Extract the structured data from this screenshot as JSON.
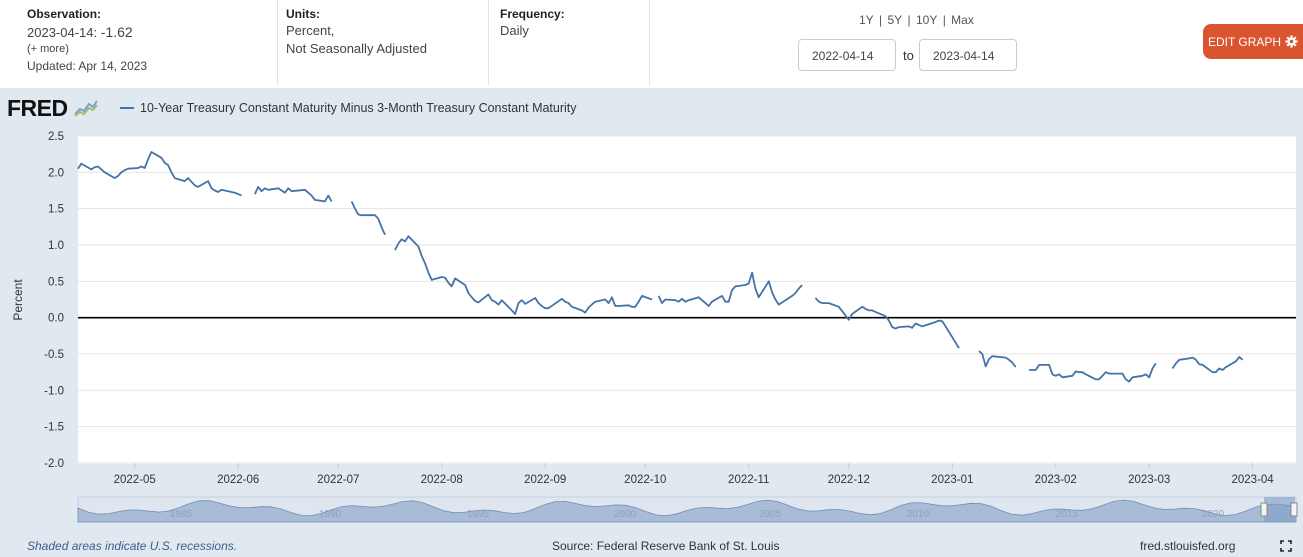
{
  "header": {
    "observation_label": "Observation:",
    "observation_date": "2023-04-14:",
    "observation_value": "-1.62",
    "more": "(+ more)",
    "updated": "Updated: Apr 14, 2023",
    "units_label": "Units:",
    "units_line1": "Percent,",
    "units_line2": "Not Seasonally Adjusted",
    "frequency_label": "Frequency:",
    "frequency_value": "Daily",
    "ranges": [
      "1Y",
      "5Y",
      "10Y",
      "Max"
    ],
    "range_sep": "|",
    "start_date": "2022-04-14",
    "to_label": "to",
    "end_date": "2023-04-14",
    "edit_label": "EDIT GRAPH"
  },
  "logo": "FRED",
  "icons": {
    "logo_chart": "line-chart-icon",
    "edit": "gear-icon",
    "fullscreen": "fullscreen-icon"
  },
  "footer": {
    "recession_note": "Shaded areas indicate U.S. recessions.",
    "source": "Source: Federal Reserve Bank of St. Louis",
    "site": "fred.stlouisfed.org"
  },
  "colors": {
    "series": "#4572a7",
    "panel": "#e1e9f0",
    "edit": "#d9542f",
    "zero_line": "#000000"
  },
  "navigator_labels": [
    "1985",
    "1990",
    "1995",
    "2000",
    "2005",
    "2010",
    "2015",
    "2020"
  ],
  "chart_data": {
    "type": "line",
    "series": [
      {
        "name": "10-Year Treasury Constant Maturity Minus 3-Month Treasury Constant Maturity",
        "points": [
          [
            "2022-04-14",
            2.05
          ],
          [
            "2022-04-15",
            2.12
          ],
          [
            "2022-04-18",
            2.04
          ],
          [
            "2022-04-19",
            2.07
          ],
          [
            "2022-04-20",
            2.08
          ],
          [
            "2022-04-21",
            2.04
          ],
          [
            "2022-04-22",
            2.0
          ],
          [
            "2022-04-25",
            1.92
          ],
          [
            "2022-04-26",
            1.95
          ],
          [
            "2022-04-27",
            2.0
          ],
          [
            "2022-04-28",
            2.03
          ],
          [
            "2022-04-29",
            2.05
          ],
          [
            "2022-05-02",
            2.06
          ],
          [
            "2022-05-03",
            2.08
          ],
          [
            "2022-05-04",
            2.06
          ],
          [
            "2022-05-05",
            2.18
          ],
          [
            "2022-05-06",
            2.28
          ],
          [
            "2022-05-09",
            2.2
          ],
          [
            "2022-05-10",
            2.13
          ],
          [
            "2022-05-11",
            2.1
          ],
          [
            "2022-05-12",
            2.0
          ],
          [
            "2022-05-13",
            1.92
          ],
          [
            "2022-05-16",
            1.88
          ],
          [
            "2022-05-17",
            1.92
          ],
          [
            "2022-05-18",
            1.87
          ],
          [
            "2022-05-19",
            1.82
          ],
          [
            "2022-05-20",
            1.8
          ],
          [
            "2022-05-23",
            1.88
          ],
          [
            "2022-05-24",
            1.78
          ],
          [
            "2022-05-25",
            1.75
          ],
          [
            "2022-05-26",
            1.73
          ],
          [
            "2022-05-27",
            1.76
          ],
          [
            "2022-05-31",
            1.72
          ],
          [
            "2022-06-01",
            1.7
          ],
          [
            "2022-06-02",
            1.68
          ],
          null,
          [
            "2022-06-06",
            1.7
          ],
          [
            "2022-06-07",
            1.8
          ],
          [
            "2022-06-08",
            1.74
          ],
          [
            "2022-06-09",
            1.78
          ],
          [
            "2022-06-10",
            1.76
          ],
          [
            "2022-06-13",
            1.78
          ],
          [
            "2022-06-14",
            1.75
          ],
          [
            "2022-06-15",
            1.72
          ],
          [
            "2022-06-16",
            1.78
          ],
          [
            "2022-06-17",
            1.74
          ],
          [
            "2022-06-21",
            1.76
          ],
          [
            "2022-06-22",
            1.72
          ],
          [
            "2022-06-23",
            1.68
          ],
          [
            "2022-06-24",
            1.62
          ],
          [
            "2022-06-27",
            1.6
          ],
          [
            "2022-06-28",
            1.68
          ],
          [
            "2022-06-29",
            1.6
          ],
          null,
          [
            "2022-07-05",
            1.6
          ],
          [
            "2022-07-06",
            1.5
          ],
          [
            "2022-07-07",
            1.42
          ],
          [
            "2022-07-08",
            1.41
          ],
          [
            "2022-07-11",
            1.41
          ],
          [
            "2022-07-12",
            1.41
          ],
          [
            "2022-07-13",
            1.36
          ],
          [
            "2022-07-14",
            1.24
          ],
          [
            "2022-07-15",
            1.14
          ],
          null,
          [
            "2022-07-18",
            0.93
          ],
          [
            "2022-07-19",
            1.02
          ],
          [
            "2022-07-20",
            1.08
          ],
          [
            "2022-07-21",
            1.05
          ],
          [
            "2022-07-22",
            1.12
          ],
          [
            "2022-07-25",
            0.98
          ],
          [
            "2022-07-26",
            0.85
          ],
          [
            "2022-07-27",
            0.75
          ],
          [
            "2022-07-28",
            0.62
          ],
          [
            "2022-07-29",
            0.52
          ],
          [
            "2022-08-01",
            0.56
          ],
          [
            "2022-08-02",
            0.55
          ],
          [
            "2022-08-03",
            0.48
          ],
          [
            "2022-08-04",
            0.43
          ],
          [
            "2022-08-05",
            0.54
          ],
          [
            "2022-08-08",
            0.45
          ],
          [
            "2022-08-09",
            0.34
          ],
          [
            "2022-08-10",
            0.28
          ],
          [
            "2022-08-11",
            0.23
          ],
          [
            "2022-08-12",
            0.21
          ],
          [
            "2022-08-15",
            0.32
          ],
          [
            "2022-08-16",
            0.24
          ],
          [
            "2022-08-17",
            0.22
          ],
          [
            "2022-08-18",
            0.18
          ],
          [
            "2022-08-19",
            0.24
          ],
          [
            "2022-08-22",
            0.1
          ],
          [
            "2022-08-23",
            0.05
          ],
          [
            "2022-08-24",
            0.2
          ],
          [
            "2022-08-25",
            0.24
          ],
          [
            "2022-08-26",
            0.19
          ],
          [
            "2022-08-29",
            0.27
          ],
          [
            "2022-08-30",
            0.2
          ],
          [
            "2022-08-31",
            0.16
          ],
          [
            "2022-09-01",
            0.13
          ],
          [
            "2022-09-02",
            0.13
          ],
          [
            "2022-09-06",
            0.26
          ],
          [
            "2022-09-07",
            0.22
          ],
          [
            "2022-09-08",
            0.2
          ],
          [
            "2022-09-09",
            0.15
          ],
          [
            "2022-09-12",
            0.1
          ],
          [
            "2022-09-13",
            0.07
          ],
          [
            "2022-09-14",
            0.14
          ],
          [
            "2022-09-15",
            0.18
          ],
          [
            "2022-09-16",
            0.22
          ],
          [
            "2022-09-19",
            0.25
          ],
          [
            "2022-09-20",
            0.2
          ],
          [
            "2022-09-21",
            0.28
          ],
          [
            "2022-09-22",
            0.16
          ],
          [
            "2022-09-23",
            0.16
          ],
          [
            "2022-09-26",
            0.17
          ],
          [
            "2022-09-27",
            0.15
          ],
          [
            "2022-09-28",
            0.15
          ],
          [
            "2022-09-29",
            0.22
          ],
          [
            "2022-09-30",
            0.3
          ],
          [
            "2022-10-03",
            0.25
          ],
          null,
          [
            "2022-10-05",
            0.3
          ],
          [
            "2022-10-06",
            0.2
          ],
          [
            "2022-10-07",
            0.25
          ],
          [
            "2022-10-10",
            0.24
          ],
          [
            "2022-10-11",
            0.22
          ],
          [
            "2022-10-12",
            0.26
          ],
          [
            "2022-10-13",
            0.22
          ],
          [
            "2022-10-14",
            0.24
          ],
          [
            "2022-10-17",
            0.28
          ],
          [
            "2022-10-18",
            0.24
          ],
          [
            "2022-10-19",
            0.2
          ],
          [
            "2022-10-20",
            0.16
          ],
          [
            "2022-10-21",
            0.22
          ],
          [
            "2022-10-24",
            0.3
          ],
          [
            "2022-10-25",
            0.22
          ],
          [
            "2022-10-26",
            0.22
          ],
          [
            "2022-10-27",
            0.38
          ],
          [
            "2022-10-28",
            0.43
          ],
          [
            "2022-10-31",
            0.45
          ],
          [
            "2022-11-01",
            0.47
          ],
          [
            "2022-11-02",
            0.62
          ],
          [
            "2022-11-03",
            0.4
          ],
          [
            "2022-11-04",
            0.28
          ],
          [
            "2022-11-07",
            0.5
          ],
          [
            "2022-11-08",
            0.35
          ],
          [
            "2022-11-09",
            0.25
          ],
          [
            "2022-11-10",
            0.18
          ],
          [
            "2022-11-14",
            0.3
          ],
          [
            "2022-11-15",
            0.34
          ],
          [
            "2022-11-16",
            0.4
          ],
          [
            "2022-11-17",
            0.45
          ],
          null,
          [
            "2022-11-21",
            0.27
          ],
          [
            "2022-11-22",
            0.22
          ],
          [
            "2022-11-23",
            0.2
          ],
          [
            "2022-11-25",
            0.2
          ],
          [
            "2022-11-28",
            0.15
          ],
          [
            "2022-11-29",
            0.09
          ],
          [
            "2022-11-30",
            0.03
          ],
          [
            "2022-12-01",
            -0.03
          ],
          [
            "2022-12-02",
            0.05
          ],
          [
            "2022-12-05",
            0.15
          ],
          [
            "2022-12-06",
            0.12
          ],
          [
            "2022-12-07",
            0.1
          ],
          [
            "2022-12-08",
            0.1
          ],
          [
            "2022-12-09",
            0.08
          ],
          [
            "2022-12-12",
            0.02
          ],
          [
            "2022-12-13",
            -0.04
          ],
          [
            "2022-12-14",
            -0.13
          ],
          [
            "2022-12-15",
            -0.15
          ],
          [
            "2022-12-16",
            -0.13
          ],
          [
            "2022-12-19",
            -0.12
          ],
          [
            "2022-12-20",
            -0.14
          ],
          [
            "2022-12-21",
            -0.08
          ],
          [
            "2022-12-22",
            -0.1
          ],
          [
            "2022-12-23",
            -0.12
          ],
          [
            "2022-12-27",
            -0.06
          ],
          [
            "2022-12-28",
            -0.04
          ],
          [
            "2022-12-29",
            -0.05
          ],
          [
            "2022-12-30",
            -0.12
          ],
          [
            "2023-01-03",
            -0.42
          ],
          null,
          [
            "2023-01-09",
            -0.46
          ],
          [
            "2023-01-10",
            -0.5
          ],
          [
            "2023-01-11",
            -0.67
          ],
          [
            "2023-01-12",
            -0.57
          ],
          [
            "2023-01-13",
            -0.53
          ],
          [
            "2023-01-17",
            -0.55
          ],
          [
            "2023-01-18",
            -0.58
          ],
          [
            "2023-01-19",
            -0.62
          ],
          [
            "2023-01-20",
            -0.68
          ],
          null,
          [
            "2023-01-24",
            -0.72
          ],
          [
            "2023-01-25",
            -0.72
          ],
          [
            "2023-01-26",
            -0.72
          ],
          [
            "2023-01-27",
            -0.65
          ],
          [
            "2023-01-30",
            -0.65
          ],
          [
            "2023-01-31",
            -0.78
          ],
          [
            "2023-02-01",
            -0.8
          ],
          [
            "2023-02-02",
            -0.78
          ],
          [
            "2023-02-03",
            -0.82
          ],
          [
            "2023-02-06",
            -0.8
          ],
          [
            "2023-02-07",
            -0.74
          ],
          [
            "2023-02-08",
            -0.75
          ],
          [
            "2023-02-09",
            -0.75
          ],
          [
            "2023-02-10",
            -0.78
          ],
          [
            "2023-02-13",
            -0.85
          ],
          [
            "2023-02-14",
            -0.85
          ],
          [
            "2023-02-15",
            -0.8
          ],
          [
            "2023-02-16",
            -0.75
          ],
          [
            "2023-02-17",
            -0.77
          ],
          [
            "2023-02-21",
            -0.77
          ],
          [
            "2023-02-22",
            -0.85
          ],
          [
            "2023-02-23",
            -0.88
          ],
          [
            "2023-02-24",
            -0.82
          ],
          [
            "2023-02-27",
            -0.8
          ],
          [
            "2023-02-28",
            -0.78
          ],
          [
            "2023-03-01",
            -0.82
          ],
          [
            "2023-03-02",
            -0.7
          ],
          [
            "2023-03-03",
            -0.63
          ],
          null,
          [
            "2023-03-08",
            -0.7
          ],
          [
            "2023-03-09",
            -0.63
          ],
          [
            "2023-03-10",
            -0.58
          ],
          [
            "2023-03-13",
            -0.56
          ],
          [
            "2023-03-14",
            -0.55
          ],
          [
            "2023-03-15",
            -0.58
          ],
          [
            "2023-03-16",
            -0.64
          ],
          [
            "2023-03-17",
            -0.65
          ],
          [
            "2023-03-20",
            -0.75
          ],
          [
            "2023-03-21",
            -0.75
          ],
          [
            "2023-03-22",
            -0.7
          ],
          [
            "2023-03-23",
            -0.72
          ],
          [
            "2023-03-24",
            -0.68
          ],
          [
            "2023-03-27",
            -0.6
          ],
          [
            "2023-03-28",
            -0.54
          ],
          [
            "2023-03-29",
            -0.58
          ]
        ]
      }
    ],
    "ylabel": "Percent",
    "ylim": [
      -2.0,
      2.5
    ],
    "yticks": [
      2.5,
      2.0,
      1.5,
      1.0,
      0.5,
      0.0,
      -0.5,
      -1.0,
      -1.5,
      -2.0
    ],
    "ytick_labels": [
      "2.5",
      "2.0",
      "1.5",
      "1.0",
      "0.5",
      "0.0",
      "-0.5",
      "-1.0",
      "-1.5",
      "-2.0"
    ],
    "xlim": [
      "2022-04-14",
      "2023-04-14"
    ],
    "xticks": [
      "2022-05-01",
      "2022-06-01",
      "2022-07-01",
      "2022-08-01",
      "2022-09-01",
      "2022-10-01",
      "2022-11-01",
      "2022-12-01",
      "2023-01-01",
      "2023-02-01",
      "2023-03-01",
      "2023-04-01"
    ],
    "xtick_labels": [
      "2022-05",
      "2022-06",
      "2022-07",
      "2022-08",
      "2022-09",
      "2022-10",
      "2022-11",
      "2022-12",
      "2023-01",
      "2023-02",
      "2023-03",
      "2023-04"
    ],
    "reference_line": 0.0,
    "grid": true
  }
}
